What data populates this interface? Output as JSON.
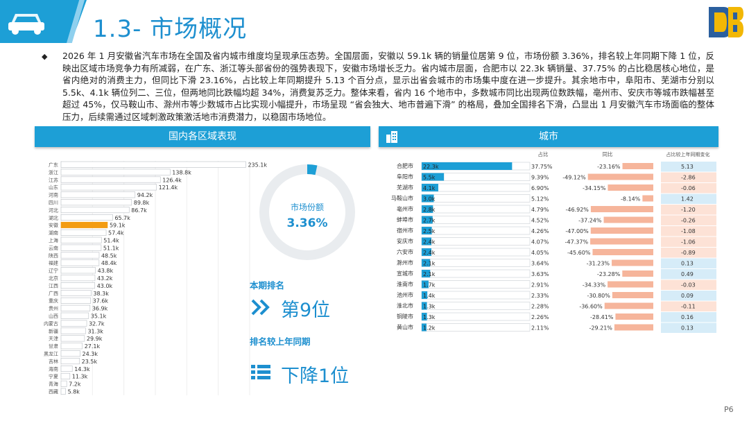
{
  "header": {
    "title": "1.3- 市场概况",
    "car_icon": "car-icon",
    "logo_icon": "db-logo-icon",
    "brand_color": "#1d9fd6"
  },
  "summary": "2026 年 1 月安徽省汽车市场在全国及省内城市维度均呈现承压态势。全国层面，安徽以 59.1k 辆的销量位居第 9 位，市场份额 3.36%，排名较上年同期下降 1 位，反映出区域市场竞争力有所减弱，在广东、浙江等头部省份的强势表现下，安徽市场增长乏力。省内城市层面，合肥市以 22.3k 辆销量、37.75% 的占比稳居核心地位，是省内绝对的消费主力，但同比下滑 23.16%，占比较上年同期提升 5.13 个百分点，显示出省会城市的市场集中度在进一步提升。其余地市中，阜阳市、芜湖市分别以 5.5k、4.1k 辆位列二、三位，但两地同比跌幅均超 34%，消费复苏乏力。整体来看，省内 16 个地市中，多数城市同比出现两位数跌幅，亳州市、安庆市等城市跌幅甚至超过 45%，仅马鞍山市、滁州市等少数城市占比实现小幅提升，市场呈现 “省会独大、地市普遍下滑” 的格局，叠加全国排名下滑，凸显出 1 月安徽汽车市场面临的整体压力，后续需通过区域刺激政策激活地市消费潜力，以稳固市场地位。",
  "left_panel": {
    "title": "国内各区域表现"
  },
  "right_panel": {
    "title": "城市",
    "icon": "city-building-icon"
  },
  "kpi": {
    "share_label": "市场份额",
    "share_value": "3.36%",
    "share_fraction": 0.0336,
    "rank_label": "本期排名",
    "rank_value": "第9位",
    "rank_icon": "double-chevron-icon",
    "change_label": "排名较上年同期",
    "change_value": "下降1位",
    "change_icon": "list-icon"
  },
  "page": "P6",
  "chart_data": [
    {
      "type": "bar",
      "orientation": "horizontal",
      "highlight": "安徽",
      "highlight_color": "#f39c12",
      "bar_color": "#ffffff",
      "categories": [
        "广东",
        "浙江",
        "江苏",
        "山东",
        "河南",
        "四川",
        "河北",
        "湖北",
        "安徽",
        "湖南",
        "上海",
        "云南",
        "陕西",
        "福建",
        "辽宁",
        "北京",
        "江西",
        "广西",
        "重庆",
        "贵州",
        "山西",
        "内蒙古",
        "新疆",
        "天津",
        "甘肃",
        "黑龙江",
        "吉林",
        "海南",
        "宁夏",
        "青海",
        "西藏"
      ],
      "values": [
        235.1,
        138.8,
        126.4,
        121.4,
        94.2,
        89.8,
        86.7,
        65.7,
        59.1,
        57.4,
        51.4,
        51.1,
        48.5,
        48.4,
        43.8,
        43.2,
        43.0,
        38.3,
        37.6,
        36.9,
        35.1,
        32.7,
        31.3,
        29.9,
        27.1,
        24.3,
        23.5,
        14.3,
        11.3,
        7.2,
        5.8
      ],
      "labels": [
        "235.1k",
        "138.8k",
        "126.4k",
        "121.4k",
        "94.2k",
        "89.8k",
        "86.7k",
        "65.7k",
        "59.1k",
        "57.4k",
        "51.4k",
        "51.1k",
        "48.5k",
        "48.4k",
        "43.8k",
        "43.2k",
        "43.0k",
        "38.3k",
        "37.6k",
        "36.9k",
        "35.1k",
        "32.7k",
        "31.3k",
        "29.9k",
        "27.1k",
        "24.3k",
        "23.5k",
        "14.3k",
        "11.3k",
        "7.2k",
        "5.8k"
      ]
    },
    {
      "type": "table",
      "columns": [
        "",
        "占比",
        "同比",
        "占比较上年同期变化"
      ],
      "cities": [
        "合肥市",
        "阜阳市",
        "芜湖市",
        "马鞍山市",
        "亳州市",
        "蚌埠市",
        "宿州市",
        "安庆市",
        "六安市",
        "滁州市",
        "宣城市",
        "淮南市",
        "池州市",
        "淮北市",
        "铜陵市",
        "黄山市"
      ],
      "volume": [
        22.3,
        5.5,
        4.1,
        3.0,
        2.8,
        2.7,
        2.5,
        2.4,
        2.4,
        2.1,
        2.1,
        1.7,
        1.4,
        1.3,
        1.3,
        1.2
      ],
      "volume_labels": [
        "22.3k",
        "5.5k",
        "4.1k",
        "3.0k",
        "2.8k",
        "2.7k",
        "2.5k",
        "2.4k",
        "2.4k",
        "2.1k",
        "2.1k",
        "1.7k",
        "1.4k",
        "1.3k",
        "1.3k",
        "1.2k"
      ],
      "share_labels": [
        "37.75%",
        "9.39%",
        "6.90%",
        "5.12%",
        "4.79%",
        "4.52%",
        "4.26%",
        "4.07%",
        "4.05%",
        "3.64%",
        "3.63%",
        "2.91%",
        "2.33%",
        "2.28%",
        "2.26%",
        "2.11%"
      ],
      "yoy": [
        -23.16,
        -49.12,
        -34.15,
        -8.14,
        -46.92,
        -37.24,
        -47.0,
        -47.37,
        -45.6,
        -31.23,
        -23.28,
        -34.33,
        -30.8,
        -36.6,
        -28.41,
        -29.21
      ],
      "yoy_labels": [
        "-23.16%",
        "-49.12%",
        "-34.15%",
        "-8.14%",
        "-46.92%",
        "-37.24%",
        "-47.00%",
        "-47.37%",
        "-45.60%",
        "-31.23%",
        "-23.28%",
        "-34.33%",
        "-30.80%",
        "-36.60%",
        "-28.41%",
        "-29.21%"
      ],
      "share_change": [
        5.13,
        -2.86,
        -0.06,
        1.42,
        -1.2,
        -0.26,
        -1.08,
        -1.06,
        -0.89,
        0.13,
        0.49,
        -0.03,
        0.09,
        -0.11,
        0.16,
        0.13
      ],
      "share_change_labels": [
        "5.13",
        "-2.86",
        "-0.06",
        "1.42",
        "-1.20",
        "-0.26",
        "-1.08",
        "-1.06",
        "-0.89",
        "0.13",
        "0.49",
        "-0.03",
        "0.09",
        "-0.11",
        "0.16",
        "0.13"
      ],
      "bar_color": "#1d9fd6",
      "yoy_color": "#f6b59b",
      "positive_color": "#d6ecf8",
      "negative_color": "#fde2d6"
    }
  ]
}
